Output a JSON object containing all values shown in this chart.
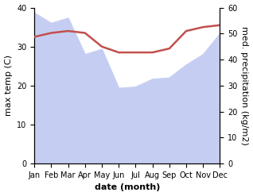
{
  "months": [
    "Jan",
    "Feb",
    "Mar",
    "Apr",
    "May",
    "Jun",
    "Jul",
    "Aug",
    "Sep",
    "Oct",
    "Nov",
    "Dec"
  ],
  "max_temp": [
    32.5,
    33.5,
    34.0,
    33.5,
    30.0,
    28.5,
    28.5,
    28.5,
    29.5,
    34.0,
    35.0,
    35.5
  ],
  "precipitation": [
    58.0,
    54.0,
    56.0,
    42.0,
    44.0,
    29.0,
    29.5,
    32.5,
    33.0,
    38.0,
    42.0,
    50.0
  ],
  "temp_color": "#c0504d",
  "precip_fill_color": "#c5cef2",
  "temp_ylim": [
    0,
    40
  ],
  "precip_ylim": [
    0,
    60
  ],
  "xlabel": "date (month)",
  "ylabel_left": "max temp (C)",
  "ylabel_right": "med. precipitation (kg/m2)",
  "background_color": "#ffffff",
  "temp_linewidth": 1.8,
  "ylabel_fontsize": 8,
  "xlabel_fontsize": 8,
  "tick_fontsize": 7
}
